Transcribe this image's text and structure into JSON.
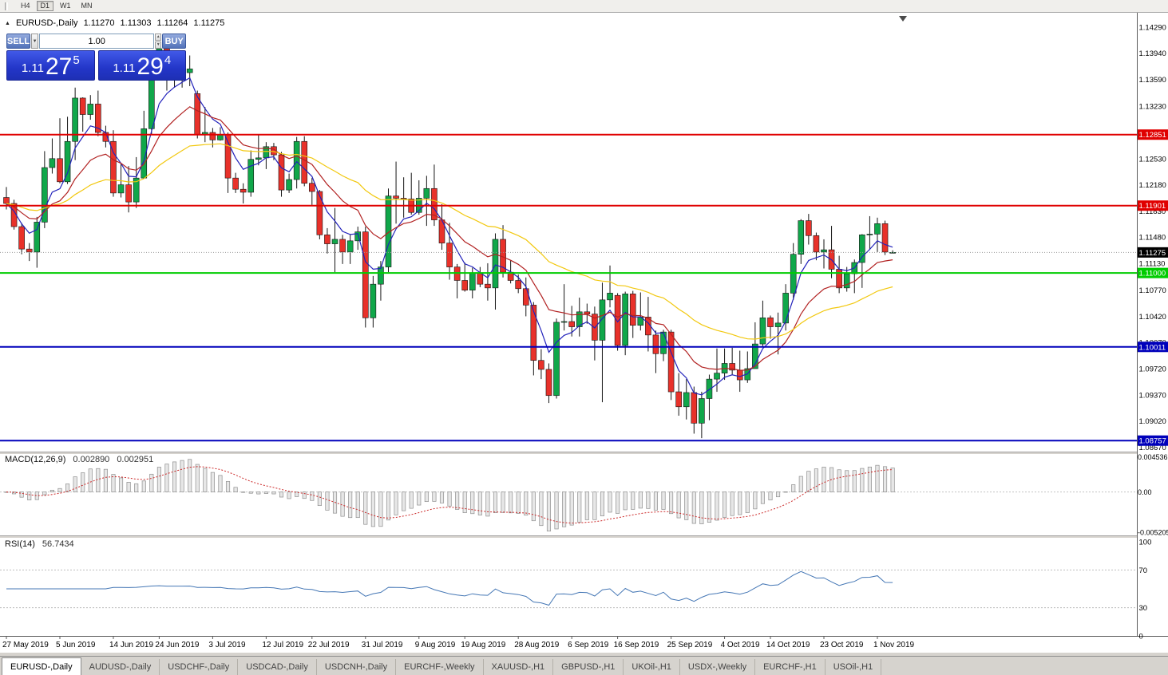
{
  "toolbar": {
    "timeframes": [
      "H4",
      "D1",
      "W1",
      "MN"
    ],
    "active": "D1"
  },
  "icons": {
    "collapse_arrow": "▲",
    "spinner_up": "▲",
    "spinner_down": "▼",
    "dropdown_down": "▼"
  },
  "chart_header": {
    "symbol": "EURUSD-,Daily",
    "open": "1.11270",
    "high": "1.11303",
    "low": "1.11264",
    "close": "1.11275"
  },
  "one_click": {
    "sell_label": "SELL",
    "buy_label": "BUY",
    "volume": "1.00",
    "sell_price": {
      "prefix": "1.11",
      "big": "27",
      "sup": "5"
    },
    "buy_price": {
      "prefix": "1.11",
      "big": "29",
      "sup": "4"
    }
  },
  "tabs": [
    "EURUSD-,Daily",
    "AUDUSD-,Daily",
    "USDCHF-,Daily",
    "USDCAD-,Daily",
    "USDCNH-,Daily",
    "EURCHF-,Weekly",
    "XAUUSD-,H1",
    "GBPUSD-,H1",
    "UKOil-,H1",
    "USDX-,Weekly",
    "EURCHF-,H1",
    "USOil-,H1"
  ],
  "chart_data": {
    "type": "candlestick",
    "symbol": "EURUSD-",
    "timeframe": "Daily",
    "ylim": [
      1.0861,
      1.1446
    ],
    "style": {
      "up": "#10a74a",
      "down": "#e8312a",
      "outline": "#151515"
    },
    "price_ticks": [
      "1.14290",
      "1.13940",
      "1.13590",
      "1.13230",
      "1.12880",
      "1.12530",
      "1.12180",
      "1.11830",
      "1.11480",
      "1.11130",
      "1.10770",
      "1.10420",
      "1.10070",
      "1.09720",
      "1.09370",
      "1.09020",
      "1.08670"
    ],
    "hlines": [
      {
        "price": 1.12851,
        "label": "1.12851",
        "color": "#e00000",
        "width": 2
      },
      {
        "price": 1.11901,
        "label": "1.11901",
        "color": "#e00000",
        "width": 2
      },
      {
        "price": 1.11,
        "label": "1.11000",
        "color": "#00cc00",
        "width": 2
      },
      {
        "price": 1.10011,
        "label": "1.10011",
        "color": "#0000bb",
        "width": 2
      },
      {
        "price": 1.08757,
        "label": "1.08757",
        "color": "#0000bb",
        "width": 2
      }
    ],
    "current_price": {
      "value": 1.11275,
      "label": "1.11275"
    },
    "moving_averages": [
      {
        "period": 5,
        "color": "#2222bb"
      },
      {
        "period": 13,
        "color": "#b22222"
      },
      {
        "period": 34,
        "color": "#f2c80f"
      }
    ],
    "date_labels": [
      {
        "i": 0,
        "label": "27 May 2019"
      },
      {
        "i": 7,
        "label": "5 Jun 2019"
      },
      {
        "i": 14,
        "label": "14 Jun 2019"
      },
      {
        "i": 20,
        "label": "24 Jun 2019"
      },
      {
        "i": 27,
        "label": "3 Jul 2019"
      },
      {
        "i": 34,
        "label": "12 Jul 2019"
      },
      {
        "i": 40,
        "label": "22 Jul 2019"
      },
      {
        "i": 47,
        "label": "31 Jul 2019"
      },
      {
        "i": 54,
        "label": "9 Aug 2019"
      },
      {
        "i": 60,
        "label": "19 Aug 2019"
      },
      {
        "i": 67,
        "label": "28 Aug 2019"
      },
      {
        "i": 74,
        "label": "6 Sep 2019"
      },
      {
        "i": 80,
        "label": "16 Sep 2019"
      },
      {
        "i": 87,
        "label": "25 Sep 2019"
      },
      {
        "i": 94,
        "label": "4 Oct 2019"
      },
      {
        "i": 100,
        "label": "14 Oct 2019"
      },
      {
        "i": 107,
        "label": "23 Oct 2019"
      },
      {
        "i": 114,
        "label": "1 Nov 2019"
      }
    ],
    "macd": {
      "label": "MACD(12,26,9)",
      "value_main": "0.002890",
      "value_signal": "0.002951",
      "fast": 12,
      "slow": 26,
      "signal": 9,
      "ylim": [
        -0.0056,
        0.0049
      ],
      "ticks": [
        {
          "v": 0.004536,
          "label": "0.004536"
        },
        {
          "v": 0,
          "label": "0.00"
        },
        {
          "v": -0.005205,
          "label": "-0.005205"
        }
      ],
      "signal_color": "#cc2a2a",
      "histogram_fill": "#e7e7e7",
      "histogram_stroke": "#8f8f8f"
    },
    "rsi": {
      "label": "RSI(14)",
      "value": "56.7434",
      "period": 14,
      "color": "#4577b5",
      "levels": [
        70,
        30
      ],
      "ticks": [
        {
          "v": 100,
          "label": "100"
        },
        {
          "v": 70,
          "label": "70"
        },
        {
          "v": 30,
          "label": "30"
        },
        {
          "v": 0,
          "label": "0"
        }
      ]
    },
    "candles": [
      [
        1.1201,
        1.1215,
        1.1185,
        1.1193
      ],
      [
        1.1193,
        1.1198,
        1.1158,
        1.1162
      ],
      [
        1.1162,
        1.1167,
        1.1125,
        1.1132
      ],
      [
        1.1132,
        1.114,
        1.1116,
        1.1128
      ],
      [
        1.1128,
        1.1175,
        1.1107,
        1.1168
      ],
      [
        1.1168,
        1.1263,
        1.116,
        1.1241
      ],
      [
        1.1241,
        1.128,
        1.1233,
        1.1253
      ],
      [
        1.1253,
        1.1307,
        1.122,
        1.1222
      ],
      [
        1.1222,
        1.1309,
        1.1219,
        1.1276
      ],
      [
        1.1276,
        1.1348,
        1.1251,
        1.1334
      ],
      [
        1.1334,
        1.1335,
        1.1289,
        1.1312
      ],
      [
        1.1312,
        1.1338,
        1.1305,
        1.1326
      ],
      [
        1.1326,
        1.1344,
        1.1283,
        1.1288
      ],
      [
        1.1288,
        1.1297,
        1.1268,
        1.1276
      ],
      [
        1.1276,
        1.1291,
        1.1202,
        1.1207
      ],
      [
        1.1207,
        1.1246,
        1.1201,
        1.1218
      ],
      [
        1.1218,
        1.1243,
        1.1181,
        1.1195
      ],
      [
        1.1195,
        1.1255,
        1.1187,
        1.1227
      ],
      [
        1.1227,
        1.1317,
        1.1226,
        1.1293
      ],
      [
        1.1293,
        1.1378,
        1.1285,
        1.1369
      ],
      [
        1.1369,
        1.1406,
        1.1364,
        1.14
      ],
      [
        1.14,
        1.1412,
        1.1344,
        1.1367
      ],
      [
        1.1367,
        1.1391,
        1.1348,
        1.1366
      ],
      [
        1.1366,
        1.1381,
        1.1348,
        1.1368
      ],
      [
        1.1368,
        1.1391,
        1.135,
        1.1373
      ],
      [
        1.134,
        1.1344,
        1.128,
        1.1285
      ],
      [
        1.1285,
        1.1322,
        1.1275,
        1.1288
      ],
      [
        1.1288,
        1.1294,
        1.1268,
        1.1278
      ],
      [
        1.1278,
        1.1295,
        1.1277,
        1.1285
      ],
      [
        1.1285,
        1.1288,
        1.1207,
        1.1227
      ],
      [
        1.1227,
        1.1234,
        1.1207,
        1.1212
      ],
      [
        1.1212,
        1.122,
        1.1193,
        1.1208
      ],
      [
        1.1208,
        1.1264,
        1.1202,
        1.1252
      ],
      [
        1.1252,
        1.1285,
        1.1244,
        1.1254
      ],
      [
        1.1254,
        1.1275,
        1.1239,
        1.1269
      ],
      [
        1.1269,
        1.1274,
        1.1251,
        1.1258
      ],
      [
        1.1258,
        1.1262,
        1.1202,
        1.1211
      ],
      [
        1.1211,
        1.1233,
        1.1207,
        1.1225
      ],
      [
        1.1225,
        1.1282,
        1.1213,
        1.1276
      ],
      [
        1.1276,
        1.1283,
        1.1216,
        1.122
      ],
      [
        1.122,
        1.1227,
        1.1191,
        1.1209
      ],
      [
        1.1209,
        1.1211,
        1.1145,
        1.1151
      ],
      [
        1.1151,
        1.116,
        1.1126,
        1.1139
      ],
      [
        1.1139,
        1.1187,
        1.1101,
        1.1145
      ],
      [
        1.1145,
        1.1151,
        1.1112,
        1.1128
      ],
      [
        1.1128,
        1.1151,
        1.1112,
        1.1143
      ],
      [
        1.1143,
        1.1162,
        1.1131,
        1.1155
      ],
      [
        1.1155,
        1.1162,
        1.1027,
        1.104
      ],
      [
        1.104,
        1.1096,
        1.1027,
        1.1085
      ],
      [
        1.1085,
        1.1116,
        1.1063,
        1.1108
      ],
      [
        1.1108,
        1.1213,
        1.1101,
        1.1203
      ],
      [
        1.1203,
        1.1249,
        1.1166,
        1.12
      ],
      [
        1.12,
        1.1228,
        1.1174,
        1.1199
      ],
      [
        1.1199,
        1.1234,
        1.1178,
        1.1181
      ],
      [
        1.1181,
        1.1224,
        1.1178,
        1.12
      ],
      [
        1.12,
        1.123,
        1.1163,
        1.1213
      ],
      [
        1.1213,
        1.1245,
        1.1163,
        1.1171
      ],
      [
        1.1171,
        1.1192,
        1.1131,
        1.114
      ],
      [
        1.114,
        1.1167,
        1.1091,
        1.1108
      ],
      [
        1.1108,
        1.1112,
        1.1066,
        1.109
      ],
      [
        1.109,
        1.1114,
        1.1075,
        1.1077
      ],
      [
        1.1077,
        1.1107,
        1.1066,
        1.11
      ],
      [
        1.11,
        1.1108,
        1.1081,
        1.1085
      ],
      [
        1.1085,
        1.1113,
        1.1063,
        1.108
      ],
      [
        1.108,
        1.1153,
        1.1051,
        1.1145
      ],
      [
        1.1145,
        1.1164,
        1.1094,
        1.1101
      ],
      [
        1.1101,
        1.1117,
        1.1086,
        1.109
      ],
      [
        1.109,
        1.1098,
        1.1073,
        1.1079
      ],
      [
        1.1079,
        1.1094,
        1.1042,
        1.1057
      ],
      [
        1.1057,
        1.1061,
        1.0963,
        1.0983
      ],
      [
        1.0983,
        1.0998,
        1.0958,
        1.0971
      ],
      [
        1.0971,
        1.0979,
        1.0926,
        1.0936
      ],
      [
        1.0936,
        1.1039,
        1.0932,
        1.1034
      ],
      [
        1.1034,
        1.1085,
        1.1023,
        1.1035
      ],
      [
        1.1035,
        1.1056,
        1.1015,
        1.1028
      ],
      [
        1.1028,
        1.1067,
        1.1015,
        1.1048
      ],
      [
        1.1048,
        1.1059,
        1.1032,
        1.1045
      ],
      [
        1.1045,
        1.1055,
        1.0983,
        1.101
      ],
      [
        1.101,
        1.1087,
        1.0927,
        1.1064
      ],
      [
        1.1064,
        1.111,
        1.1054,
        1.1073
      ],
      [
        1.107,
        1.1073,
        1.0996,
        1.1003
      ],
      [
        1.1003,
        1.1075,
        1.099,
        1.1072
      ],
      [
        1.1072,
        1.1076,
        1.1013,
        1.103
      ],
      [
        1.103,
        1.1074,
        1.1023,
        1.1041
      ],
      [
        1.1041,
        1.1068,
        1.0995,
        1.1017
      ],
      [
        1.1017,
        1.1023,
        1.0966,
        1.0992
      ],
      [
        1.0992,
        1.1024,
        1.0982,
        1.1021
      ],
      [
        1.1021,
        1.1024,
        1.093,
        1.0941
      ],
      [
        1.0941,
        1.0966,
        1.0909,
        1.0921
      ],
      [
        1.0921,
        1.0958,
        1.0904,
        1.094
      ],
      [
        1.094,
        1.0948,
        1.0885,
        1.0899
      ],
      [
        1.0899,
        1.0941,
        1.0879,
        1.0932
      ],
      [
        1.0932,
        1.0964,
        1.0903,
        1.0958
      ],
      [
        1.0958,
        1.0999,
        1.0941,
        1.0966
      ],
      [
        1.0966,
        1.0999,
        1.0957,
        1.0979
      ],
      [
        1.0979,
        1.1,
        1.0963,
        1.097
      ],
      [
        1.097,
        1.0996,
        1.0941,
        1.0957
      ],
      [
        1.0957,
        1.0995,
        1.0953,
        1.0972
      ],
      [
        1.0972,
        1.1034,
        1.0972,
        1.1005
      ],
      [
        1.1005,
        1.1063,
        1.1002,
        1.104
      ],
      [
        1.104,
        1.1043,
        1.1012,
        1.1028
      ],
      [
        1.1028,
        1.1047,
        1.0991,
        1.1033
      ],
      [
        1.1033,
        1.1085,
        1.1023,
        1.1073
      ],
      [
        1.1073,
        1.114,
        1.1064,
        1.1125
      ],
      [
        1.1125,
        1.1172,
        1.1112,
        1.117
      ],
      [
        1.117,
        1.1179,
        1.1138,
        1.115
      ],
      [
        1.115,
        1.1154,
        1.1117,
        1.1128
      ],
      [
        1.1128,
        1.1145,
        1.1106,
        1.1131
      ],
      [
        1.1131,
        1.1163,
        1.1093,
        1.1105
      ],
      [
        1.1105,
        1.1123,
        1.1073,
        1.108
      ],
      [
        1.108,
        1.1108,
        1.1075,
        1.1099
      ],
      [
        1.1099,
        1.1118,
        1.1073,
        1.1114
      ],
      [
        1.1114,
        1.1152,
        1.108,
        1.1151
      ],
      [
        1.1151,
        1.1176,
        1.1131,
        1.1152
      ],
      [
        1.1152,
        1.1174,
        1.1128,
        1.1166
      ],
      [
        1.1166,
        1.117,
        1.1124,
        1.1128
      ],
      [
        1.1127,
        1.11303,
        1.11264,
        1.11275
      ]
    ]
  }
}
